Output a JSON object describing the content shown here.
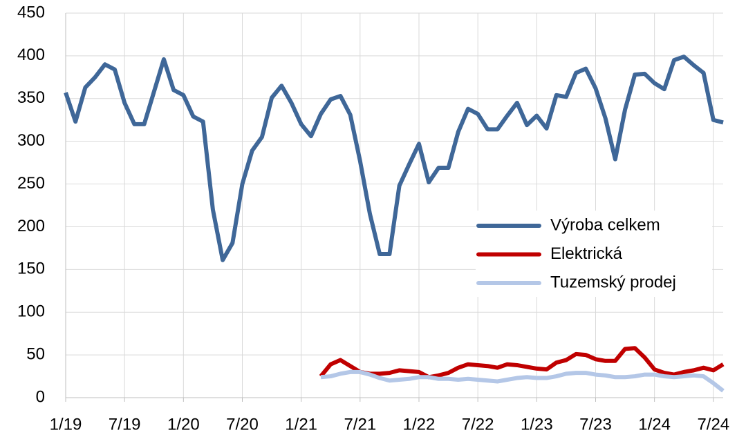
{
  "chart_data": {
    "type": "line",
    "categories": [
      "1/19",
      null,
      null,
      null,
      null,
      null,
      "7/19",
      null,
      null,
      null,
      null,
      null,
      "1/20",
      null,
      null,
      null,
      null,
      null,
      "7/20",
      null,
      null,
      null,
      null,
      null,
      "1/21",
      null,
      null,
      null,
      null,
      null,
      "7/21",
      null,
      null,
      null,
      null,
      null,
      "1/22",
      null,
      null,
      null,
      null,
      null,
      "7/22",
      null,
      null,
      null,
      null,
      null,
      "1/23",
      null,
      null,
      null,
      null,
      null,
      "7/23",
      null,
      null,
      null,
      null,
      null,
      "1/24",
      null,
      null,
      null,
      null,
      null,
      "7/24",
      null
    ],
    "series": [
      {
        "name": "Výroba celkem",
        "color": "#3f6798",
        "values": [
          357,
          323,
          363,
          375,
          390,
          384,
          345,
          320,
          320,
          358,
          396,
          360,
          354,
          329,
          323,
          220,
          161,
          181,
          250,
          289,
          305,
          351,
          365,
          345,
          320,
          306,
          332,
          349,
          353,
          331,
          277,
          215,
          168,
          168,
          248,
          273,
          297,
          252,
          269,
          269,
          311,
          338,
          332,
          314,
          314,
          330,
          345,
          319,
          330,
          315,
          354,
          352,
          380,
          385,
          362,
          327,
          279,
          337,
          378,
          379,
          368,
          361,
          395,
          399,
          389,
          380,
          325,
          322
        ]
      },
      {
        "name": "Elektrická",
        "color": "#c00000",
        "values": [
          null,
          null,
          null,
          null,
          null,
          null,
          null,
          null,
          null,
          null,
          null,
          null,
          null,
          null,
          null,
          null,
          null,
          null,
          null,
          null,
          null,
          null,
          null,
          null,
          null,
          null,
          25,
          39,
          44,
          37,
          30,
          28,
          28,
          29,
          32,
          31,
          30,
          24,
          26,
          29,
          35,
          39,
          38,
          37,
          35,
          39,
          38,
          36,
          34,
          33,
          41,
          44,
          51,
          50,
          45,
          43,
          43,
          57,
          58,
          47,
          33,
          29,
          27,
          30,
          32,
          35,
          32,
          39
        ]
      },
      {
        "name": "Tuzemský prodej",
        "color": "#b4c7e7",
        "values": [
          null,
          null,
          null,
          null,
          null,
          null,
          null,
          null,
          null,
          null,
          null,
          null,
          null,
          null,
          null,
          null,
          null,
          null,
          null,
          null,
          null,
          null,
          null,
          null,
          null,
          null,
          24,
          25,
          28,
          30,
          30,
          27,
          23,
          20,
          21,
          22,
          24,
          24,
          22,
          22,
          21,
          22,
          21,
          20,
          19,
          21,
          23,
          24,
          23,
          23,
          25,
          28,
          29,
          29,
          27,
          26,
          24,
          24,
          25,
          27,
          27,
          25,
          24,
          25,
          26,
          25,
          17,
          8
        ]
      }
    ],
    "ylim": [
      0,
      450
    ],
    "yticks": [
      0,
      50,
      100,
      150,
      200,
      250,
      300,
      350,
      400,
      450
    ],
    "grid": true,
    "legend": "right"
  }
}
